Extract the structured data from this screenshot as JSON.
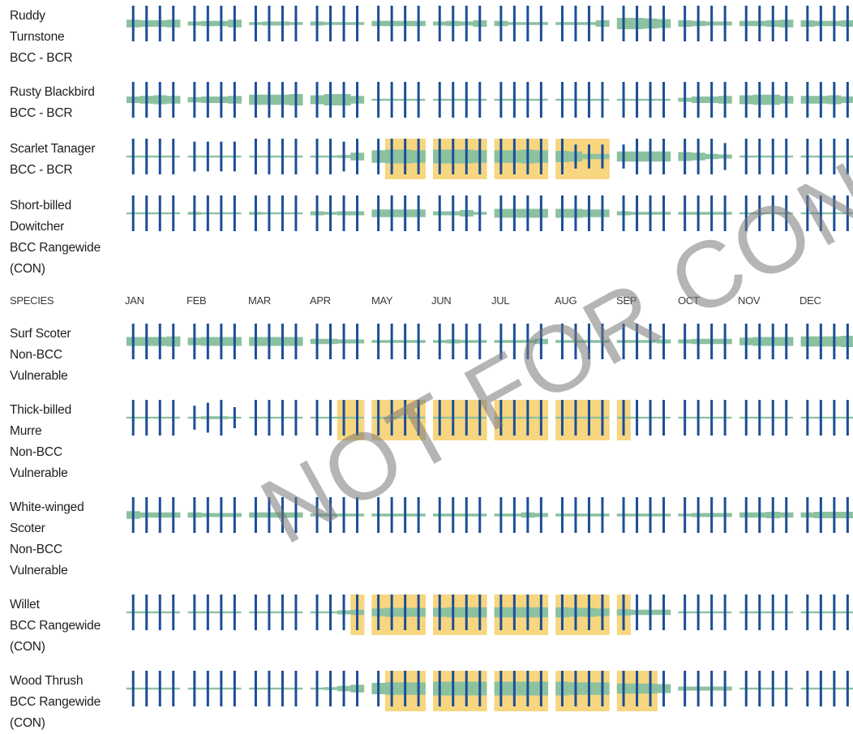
{
  "header": {
    "species": "SPECIES",
    "months": [
      "JAN",
      "FEB",
      "MAR",
      "APR",
      "MAY",
      "JUN",
      "JUL",
      "AUG",
      "SEP",
      "OCT",
      "NOV",
      "DEC"
    ]
  },
  "colors": {
    "bar": "#1b4e97",
    "presence": "#8cc1a0",
    "breeding": "#f8d680"
  },
  "rows": [
    {
      "lines": [
        "Ruddy",
        "Turnstone",
        "BCC - BCR"
      ],
      "prob": [
        0.5,
        0.4,
        0.4,
        0.5,
        0.2,
        0.3,
        0.3,
        0.5,
        0.1,
        0.2,
        0.2,
        0.1,
        0.2,
        0.1,
        0.1,
        0.1,
        0.3,
        0.3,
        0.3,
        0.3,
        0.2,
        0.3,
        0.2,
        0.4,
        0.3,
        0.1,
        0.1,
        0.1,
        0.1,
        0.1,
        0.1,
        0.4,
        0.8,
        0.8,
        0.7,
        0.6,
        0.4,
        0.3,
        0.2,
        0.2,
        0.3,
        0.3,
        0.4,
        0.5,
        0.4,
        0.3,
        0.3,
        0.4
      ],
      "effort": [
        1,
        1,
        1,
        1,
        1,
        1,
        1,
        1,
        1,
        1,
        1,
        1,
        1,
        1,
        1,
        1,
        1,
        1,
        1,
        1,
        1,
        1,
        1,
        1,
        1,
        1,
        1,
        1,
        1,
        1,
        1,
        1,
        1,
        1,
        1,
        1,
        1,
        1,
        1,
        1,
        1,
        1,
        1,
        1,
        1,
        1,
        1,
        1
      ],
      "breed": []
    },
    {
      "lines": [
        "Rusty Blackbird",
        "BCC - BCR"
      ],
      "prob": [
        0.4,
        0.5,
        0.6,
        0.5,
        0.3,
        0.4,
        0.4,
        0.5,
        0.7,
        0.7,
        0.7,
        0.8,
        0.6,
        0.8,
        0.8,
        0.5,
        0,
        0,
        0,
        0,
        0,
        0,
        0,
        0,
        0,
        0,
        0,
        0,
        0,
        0,
        0,
        0,
        0,
        0,
        0,
        0,
        0.2,
        0.4,
        0.4,
        0.5,
        0.6,
        0.7,
        0.7,
        0.5,
        0.5,
        0.5,
        0.6,
        0.4
      ],
      "effort": [
        1,
        1,
        1,
        1,
        1,
        1,
        1,
        1,
        1,
        1,
        1,
        1,
        1,
        1,
        1,
        1,
        1,
        1,
        1,
        1,
        1,
        1,
        1,
        1,
        1,
        1,
        1,
        1,
        1,
        1,
        1,
        1,
        1,
        1,
        1,
        1,
        1,
        1,
        1,
        1,
        1,
        1,
        1,
        1,
        1,
        1,
        1,
        1
      ],
      "breed": []
    },
    {
      "lines": [
        "Scarlet Tanager",
        "BCC - BCR"
      ],
      "prob": [
        0,
        0,
        0,
        0,
        0,
        0,
        0,
        0,
        0,
        0,
        0,
        0,
        0,
        0,
        0.1,
        0.5,
        0.9,
        1,
        1,
        0.9,
        1,
        1,
        1,
        0.9,
        0.9,
        0.9,
        1,
        0.9,
        0.8,
        0.7,
        0.3,
        0.3,
        0.7,
        0.7,
        0.7,
        0.7,
        0.6,
        0.5,
        0.3,
        0.2,
        0,
        0,
        0,
        0,
        0,
        0,
        0,
        0
      ],
      "effort": [
        1,
        1,
        1,
        1,
        0.8,
        0.8,
        0.8,
        0.8,
        1,
        1,
        1,
        1,
        1,
        1,
        0.8,
        1,
        1,
        1,
        1,
        1,
        1,
        1,
        1,
        1,
        1,
        1,
        1,
        1,
        1,
        0.6,
        0.6,
        0.6,
        0.6,
        1,
        1,
        1,
        1,
        1,
        1,
        0.7,
        1,
        1,
        1,
        1,
        1,
        1,
        1,
        1
      ],
      "breed": [
        17,
        18,
        19,
        20,
        21,
        22,
        23,
        24,
        25,
        26,
        27,
        28,
        29,
        30,
        31
      ]
    },
    {
      "lines": [
        "Short-billed",
        "Dowitcher",
        "BCC Rangewide",
        "(CON)"
      ],
      "prob": [
        0,
        0,
        0,
        0,
        0.1,
        0,
        0,
        0,
        0.1,
        0,
        0,
        0,
        0.2,
        0.1,
        0.2,
        0.2,
        0.5,
        0.5,
        0.5,
        0.5,
        0.2,
        0.2,
        0.4,
        0.1,
        0.6,
        0.6,
        0.6,
        0.6,
        0.6,
        0.6,
        0.5,
        0.5,
        0.2,
        0.1,
        0.1,
        0.1,
        0.1,
        0.1,
        0.1,
        0.1,
        0,
        0,
        0,
        0,
        0,
        0,
        0,
        0
      ],
      "effort": [
        1,
        1,
        1,
        1,
        1,
        1,
        1,
        1,
        1,
        1,
        1,
        1,
        1,
        1,
        1,
        1,
        1,
        1,
        1,
        1,
        1,
        1,
        1,
        1,
        1,
        1,
        1,
        1,
        1,
        1,
        1,
        1,
        1,
        1,
        1,
        1,
        1,
        1,
        1,
        1,
        1,
        1,
        1,
        1,
        1,
        1,
        1,
        1
      ],
      "breed": []
    },
    {
      "lines": [
        "Surf Scoter",
        "Non-BCC",
        "Vulnerable"
      ],
      "prob": [
        0.6,
        0.6,
        0.6,
        0.7,
        0.5,
        0.6,
        0.6,
        0.6,
        0.6,
        0.6,
        0.6,
        0.6,
        0.3,
        0.3,
        0.2,
        0.2,
        0.1,
        0.1,
        0.1,
        0.1,
        0.1,
        0.2,
        0.1,
        0.1,
        0.1,
        0.1,
        0.1,
        0.3,
        0.1,
        0.1,
        0.1,
        0.1,
        0.1,
        0.1,
        0.1,
        0.2,
        0.2,
        0.3,
        0.3,
        0.3,
        0.5,
        0.6,
        0.6,
        0.6,
        0.7,
        0.7,
        0.7,
        0.8
      ],
      "effort": [
        1,
        1,
        1,
        1,
        1,
        1,
        1,
        1,
        1,
        1,
        1,
        1,
        1,
        1,
        1,
        1,
        1,
        1,
        1,
        1,
        1,
        1,
        1,
        1,
        1,
        1,
        1,
        1,
        1,
        1,
        1,
        1,
        1,
        1,
        1,
        1,
        1,
        1,
        1,
        1,
        1,
        1,
        1,
        1,
        1,
        1,
        1,
        1
      ],
      "breed": []
    },
    {
      "lines": [
        "Thick-billed",
        "Murre",
        "Non-BCC",
        "Vulnerable"
      ],
      "prob": [
        0,
        0,
        0,
        0,
        0,
        0.1,
        0.1,
        0,
        0,
        0,
        0,
        0,
        0,
        0,
        0,
        0,
        0,
        0,
        0,
        0,
        0,
        0,
        0,
        0,
        0,
        0,
        0,
        0,
        0,
        0,
        0,
        0,
        0,
        0,
        0,
        0,
        0,
        0,
        0,
        0,
        0,
        0,
        0,
        0,
        0,
        0,
        0,
        0
      ],
      "effort": [
        1,
        1,
        1,
        1,
        0.6,
        0.8,
        1,
        0.5,
        1,
        1,
        1,
        1,
        1,
        1,
        1,
        1,
        1,
        1,
        1,
        1,
        1,
        1,
        1,
        1,
        1,
        1,
        1,
        1,
        1,
        1,
        1,
        1,
        1,
        1,
        1,
        1,
        1,
        1,
        1,
        1,
        1,
        1,
        1,
        1,
        1,
        1,
        1,
        1
      ],
      "breed": [
        14,
        15,
        16,
        17,
        18,
        19,
        20,
        21,
        22,
        23,
        24,
        25,
        26,
        27,
        28,
        29,
        30,
        31,
        32
      ]
    },
    {
      "lines": [
        "White-winged",
        "Scoter",
        "Non-BCC",
        "Vulnerable"
      ],
      "prob": [
        0.5,
        0.3,
        0.3,
        0.3,
        0.3,
        0.2,
        0.2,
        0.2,
        0.3,
        0.3,
        0.3,
        0.3,
        0.1,
        0.1,
        0.1,
        0.1,
        0.1,
        0.1,
        0.1,
        0.1,
        0.1,
        0.1,
        0.1,
        0.1,
        0.1,
        0.1,
        0.3,
        0.2,
        0.1,
        0.1,
        0.1,
        0.1,
        0.1,
        0.1,
        0.1,
        0.1,
        0.1,
        0.2,
        0.2,
        0.2,
        0.3,
        0.3,
        0.4,
        0.3,
        0.3,
        0.4,
        0.4,
        0.4
      ],
      "effort": [
        1,
        1,
        1,
        1,
        1,
        1,
        1,
        1,
        1,
        1,
        1,
        1,
        1,
        1,
        1,
        1,
        1,
        1,
        1,
        1,
        1,
        1,
        1,
        1,
        1,
        1,
        1,
        1,
        1,
        1,
        1,
        1,
        1,
        1,
        1,
        1,
        1,
        1,
        1,
        1,
        1,
        1,
        1,
        1,
        1,
        1,
        1,
        1
      ],
      "breed": []
    },
    {
      "lines": [
        "Willet",
        "BCC Rangewide",
        "(CON)"
      ],
      "prob": [
        0,
        0,
        0,
        0,
        0,
        0,
        0,
        0,
        0,
        0,
        0,
        0,
        0,
        0,
        0.2,
        0.3,
        0.5,
        0.6,
        0.6,
        0.6,
        0.6,
        0.7,
        0.7,
        0.7,
        0.7,
        0.7,
        0.7,
        0.7,
        0.7,
        0.6,
        0.6,
        0.5,
        0.4,
        0.3,
        0.3,
        0.3,
        0,
        0,
        0,
        0,
        0,
        0,
        0,
        0,
        0,
        0,
        0,
        0
      ],
      "effort": [
        1,
        1,
        1,
        1,
        1,
        1,
        1,
        1,
        1,
        1,
        1,
        1,
        1,
        1,
        1,
        1,
        1,
        1,
        1,
        1,
        1,
        1,
        1,
        1,
        1,
        1,
        1,
        1,
        1,
        1,
        1,
        1,
        1,
        1,
        1,
        1,
        1,
        1,
        1,
        1,
        1,
        1,
        1,
        1,
        1,
        1,
        1,
        1
      ],
      "breed": [
        15,
        16,
        17,
        18,
        19,
        20,
        21,
        22,
        23,
        24,
        25,
        26,
        27,
        28,
        29,
        30,
        31,
        32
      ]
    },
    {
      "lines": [
        "Wood Thrush",
        "BCC Rangewide",
        "(CON)"
      ],
      "prob": [
        0,
        0,
        0,
        0,
        0,
        0,
        0,
        0,
        0,
        0,
        0,
        0,
        0,
        0.1,
        0.3,
        0.5,
        0.8,
        0.9,
        0.9,
        0.9,
        1,
        1,
        1,
        1,
        1,
        1,
        1,
        1,
        1,
        0.9,
        0.9,
        0.9,
        0.7,
        0.7,
        0.7,
        0.6,
        0.2,
        0.2,
        0.2,
        0.2,
        0,
        0,
        0,
        0,
        0,
        0,
        0,
        0
      ],
      "effort": [
        1,
        1,
        1,
        1,
        1,
        1,
        1,
        1,
        1,
        1,
        1,
        1,
        1,
        1,
        1,
        1,
        1,
        1,
        1,
        1,
        1,
        1,
        1,
        1,
        1,
        1,
        1,
        1,
        1,
        1,
        1,
        1,
        1,
        1,
        1,
        1,
        1,
        1,
        1,
        1,
        1,
        1,
        1,
        1,
        1,
        1,
        1,
        1
      ],
      "breed": [
        17,
        18,
        19,
        20,
        21,
        22,
        23,
        24,
        25,
        26,
        27,
        28,
        29,
        30,
        31,
        32,
        33,
        34
      ]
    }
  ],
  "watermark": "NOT FOR CONSULTATION"
}
